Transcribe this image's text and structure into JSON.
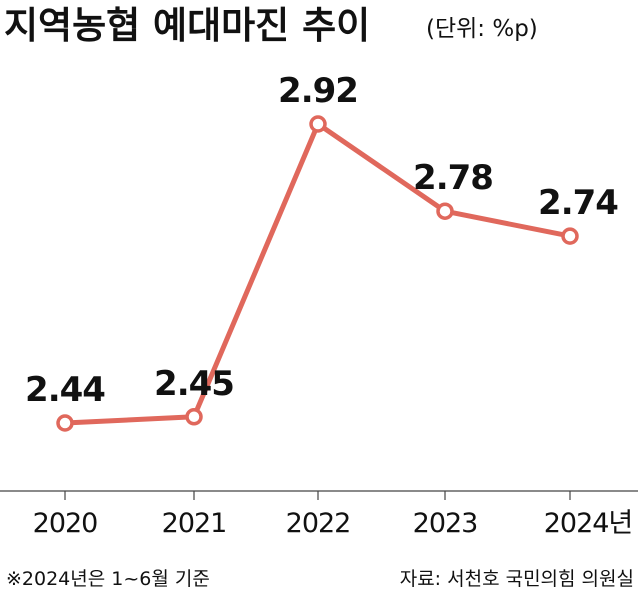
{
  "title": "지역농협 예대마진 추이",
  "unit": "(단위: %p)",
  "footnote": "※2024년은 1~6월 기준",
  "source": "자료: 서천호 국민의힘 의원실",
  "colors": {
    "line": "#e0685c",
    "marker_fill": "#ffffff",
    "axis": "#444444"
  },
  "chart_data": {
    "type": "line",
    "title": "지역농협 예대마진 추이",
    "unit": "(단위: %p)",
    "categories": [
      "2020",
      "2021",
      "2022",
      "2023",
      "2024년"
    ],
    "series": [
      {
        "values": [
          2.44,
          2.45,
          2.92,
          2.78,
          2.74
        ]
      }
    ],
    "data_labels": [
      "2.44",
      "2.45",
      "2.92",
      "2.78",
      "2.74"
    ],
    "grid": false,
    "legend": "none"
  }
}
